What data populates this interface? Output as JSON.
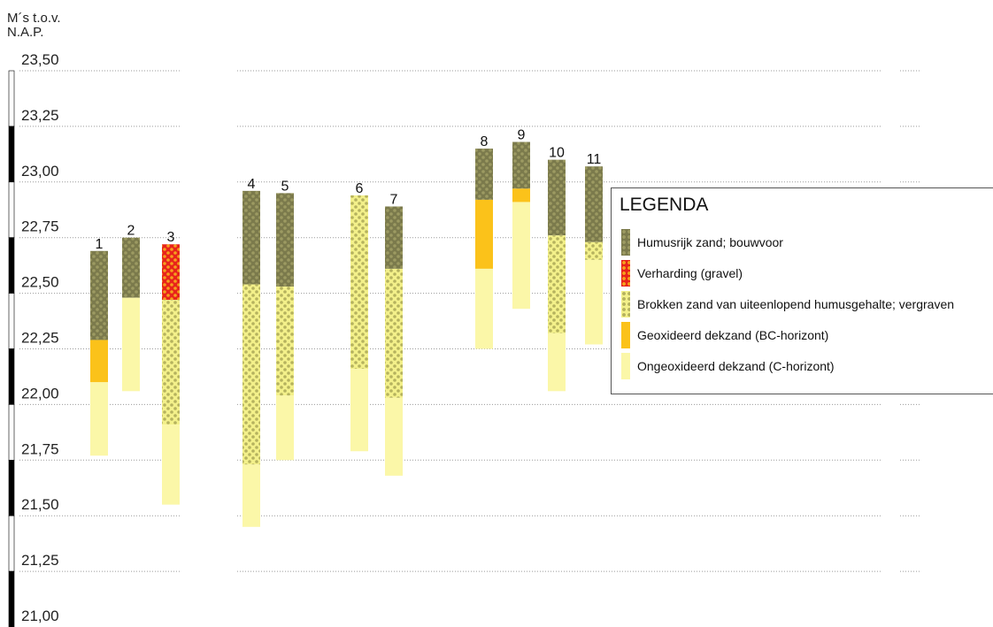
{
  "axis": {
    "unit_line1": "M´s  t.o.v.",
    "unit_line2": "N.A.P.",
    "ticks": [
      "23,50",
      "23,25",
      "23,00",
      "22,75",
      "22,50",
      "22,25",
      "22,00",
      "21,75",
      "21,50",
      "21,25",
      "21,00"
    ]
  },
  "legend": {
    "title": "LEGENDA",
    "items": [
      {
        "key": "humus",
        "label": "Humusrijk zand; bouwvoor"
      },
      {
        "key": "gravel",
        "label": "Verharding (gravel)"
      },
      {
        "key": "mixed",
        "label": "Brokken zand van uiteenlopend humusgehalte; vergraven"
      },
      {
        "key": "bc",
        "label": "Geoxideerd dekzand (BC-horizont)"
      },
      {
        "key": "c",
        "label": "Ongeoxideerd dekzand (C-horizont)"
      }
    ]
  },
  "chart_data": {
    "type": "bar",
    "ylim": [
      21.0,
      23.5
    ],
    "grid": true,
    "legend_position": "right",
    "layer_colors": {
      "humus": "#7b7a4c",
      "gravel": "#e8231b",
      "mixed": "#f3f08a",
      "bc": "#fbc21a",
      "c": "#fbf7a8"
    },
    "profiles": [
      {
        "label": "1",
        "layers": [
          {
            "type": "humus",
            "top": 22.69,
            "bottom": 22.29
          },
          {
            "type": "bc",
            "top": 22.29,
            "bottom": 22.1
          },
          {
            "type": "c",
            "top": 22.1,
            "bottom": 21.77
          }
        ]
      },
      {
        "label": "2",
        "layers": [
          {
            "type": "humus",
            "top": 22.75,
            "bottom": 22.48
          },
          {
            "type": "c",
            "top": 22.48,
            "bottom": 22.06
          }
        ]
      },
      {
        "label": "3",
        "layers": [
          {
            "type": "gravel",
            "top": 22.72,
            "bottom": 22.47
          },
          {
            "type": "mixed",
            "top": 22.47,
            "bottom": 21.91
          },
          {
            "type": "c",
            "top": 21.91,
            "bottom": 21.55
          }
        ]
      },
      {
        "label": "4",
        "layers": [
          {
            "type": "humus",
            "top": 22.96,
            "bottom": 22.54
          },
          {
            "type": "mixed",
            "top": 22.54,
            "bottom": 21.73
          },
          {
            "type": "c",
            "top": 21.73,
            "bottom": 21.45
          }
        ]
      },
      {
        "label": "5",
        "layers": [
          {
            "type": "humus",
            "top": 22.95,
            "bottom": 22.53
          },
          {
            "type": "mixed",
            "top": 22.53,
            "bottom": 22.04
          },
          {
            "type": "c",
            "top": 22.04,
            "bottom": 21.75
          }
        ]
      },
      {
        "label": "6",
        "layers": [
          {
            "type": "mixed",
            "top": 22.94,
            "bottom": 22.16
          },
          {
            "type": "c",
            "top": 22.16,
            "bottom": 21.79
          }
        ]
      },
      {
        "label": "7",
        "layers": [
          {
            "type": "humus",
            "top": 22.89,
            "bottom": 22.61
          },
          {
            "type": "mixed",
            "top": 22.61,
            "bottom": 22.03
          },
          {
            "type": "c",
            "top": 22.03,
            "bottom": 21.68
          }
        ]
      },
      {
        "label": "8",
        "layers": [
          {
            "type": "humus",
            "top": 23.15,
            "bottom": 22.92
          },
          {
            "type": "bc",
            "top": 22.92,
            "bottom": 22.61
          },
          {
            "type": "c",
            "top": 22.61,
            "bottom": 22.25
          }
        ]
      },
      {
        "label": "9",
        "layers": [
          {
            "type": "humus",
            "top": 23.18,
            "bottom": 22.97
          },
          {
            "type": "bc",
            "top": 22.97,
            "bottom": 22.91
          },
          {
            "type": "c",
            "top": 22.91,
            "bottom": 22.43
          }
        ]
      },
      {
        "label": "10",
        "layers": [
          {
            "type": "humus",
            "top": 23.1,
            "bottom": 22.76
          },
          {
            "type": "mixed",
            "top": 22.76,
            "bottom": 22.32
          },
          {
            "type": "c",
            "top": 22.32,
            "bottom": 22.06
          }
        ]
      },
      {
        "label": "11",
        "layers": [
          {
            "type": "humus",
            "top": 23.07,
            "bottom": 22.73
          },
          {
            "type": "mixed",
            "top": 22.73,
            "bottom": 22.65
          },
          {
            "type": "c",
            "top": 22.65,
            "bottom": 22.27
          }
        ]
      }
    ]
  }
}
